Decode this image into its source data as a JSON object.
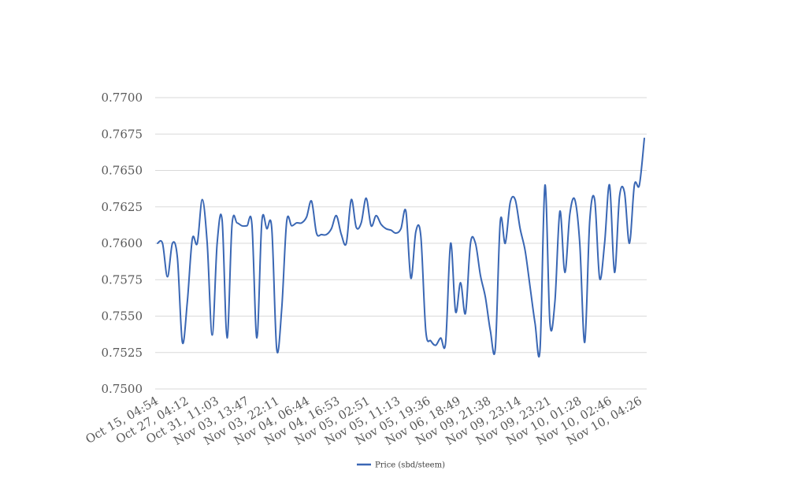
{
  "chart_data": {
    "type": "line",
    "title": "",
    "xlabel": "",
    "ylabel": "",
    "ylim": [
      0.75,
      0.77
    ],
    "ytick_labels": [
      "0.7500",
      "0.7525",
      "0.7550",
      "0.7575",
      "0.7600",
      "0.7625",
      "0.7650",
      "0.7675",
      "0.7700"
    ],
    "xtick_labels": [
      "Oct 15, 04:54",
      "Oct 27, 04:12",
      "Oct 31, 11:03",
      "Nov 03, 13:47",
      "Nov 03, 22:11",
      "Nov 04, 06:44",
      "Nov 04, 16:53",
      "Nov 05, 02:51",
      "Nov 05, 11:13",
      "Nov 05, 19:36",
      "Nov 06, 18:49",
      "Nov 09, 21:38",
      "Nov 09, 23:14",
      "Nov 09, 23:21",
      "Nov 10, 01:28",
      "Nov 10, 02:46",
      "Nov 10, 04:26"
    ],
    "grid": true,
    "legend_position": "bottom",
    "series": [
      {
        "name": "Price (sbd/steem)",
        "color": "#3a67b4",
        "values": [
          0.76,
          0.76,
          0.7577,
          0.76,
          0.759,
          0.7532,
          0.756,
          0.7603,
          0.76,
          0.763,
          0.76,
          0.7537,
          0.76,
          0.7616,
          0.7535,
          0.7613,
          0.7614,
          0.7612,
          0.7612,
          0.7613,
          0.7535,
          0.7615,
          0.761,
          0.761,
          0.7527,
          0.7555,
          0.7615,
          0.7612,
          0.7614,
          0.7614,
          0.7618,
          0.7629,
          0.7607,
          0.7606,
          0.7606,
          0.761,
          0.7619,
          0.7606,
          0.76,
          0.763,
          0.7611,
          0.7614,
          0.7631,
          0.7612,
          0.7619,
          0.7613,
          0.761,
          0.7609,
          0.7607,
          0.761,
          0.7622,
          0.7576,
          0.7608,
          0.7605,
          0.754,
          0.7533,
          0.753,
          0.7535,
          0.7532,
          0.76,
          0.7553,
          0.7573,
          0.7552,
          0.76,
          0.76,
          0.7578,
          0.7563,
          0.754,
          0.7528,
          0.7615,
          0.76,
          0.7628,
          0.763,
          0.761,
          0.7595,
          0.757,
          0.7545,
          0.7527,
          0.764,
          0.7545,
          0.756,
          0.7622,
          0.758,
          0.762,
          0.763,
          0.76,
          0.7532,
          0.7615,
          0.763,
          0.7576,
          0.76,
          0.764,
          0.758,
          0.7632,
          0.7635,
          0.76,
          0.764,
          0.764,
          0.7672
        ]
      }
    ]
  }
}
